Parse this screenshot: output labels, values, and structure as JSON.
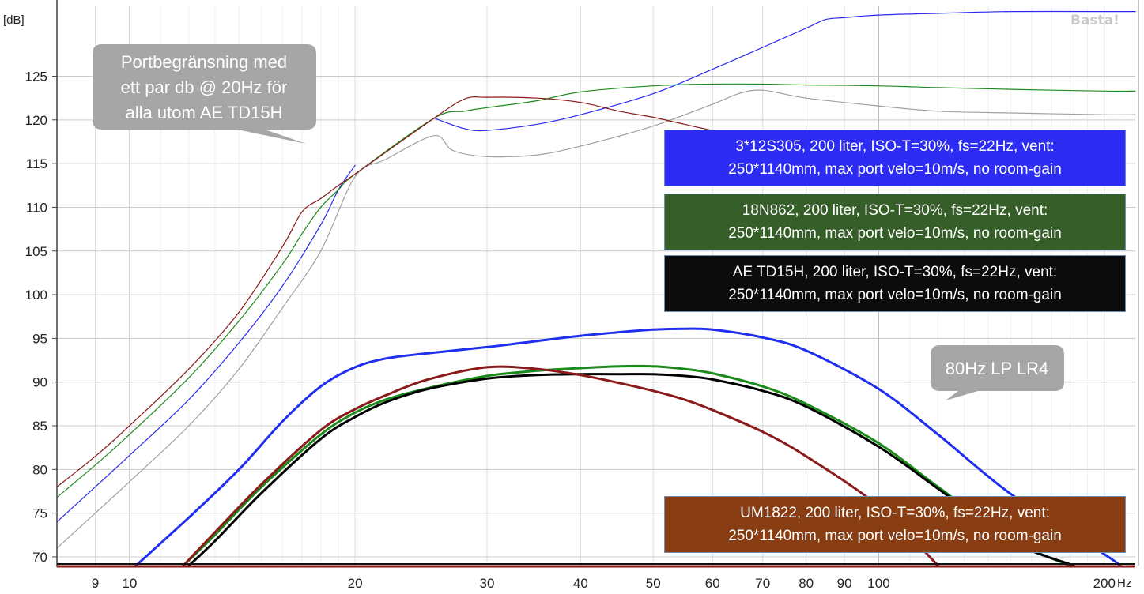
{
  "chart_data": {
    "type": "line",
    "x_scale": "log",
    "xlim": [
      8,
      220
    ],
    "ylim": [
      69,
      133
    ],
    "grid": true,
    "y_unit": "[dB]",
    "x_unit": "Hz",
    "watermark": "Basta!",
    "x_ticks": [
      9,
      10,
      20,
      30,
      40,
      50,
      60,
      70,
      80,
      90,
      100,
      200
    ],
    "y_ticks": [
      70,
      75,
      80,
      85,
      90,
      95,
      100,
      105,
      110,
      115,
      120,
      125
    ],
    "series": [
      {
        "name": "3*12S305",
        "color": "#2a2af0",
        "width": 1.2,
        "x": [
          8,
          9,
          10,
          12,
          14,
          16,
          18,
          19,
          20
        ],
        "y": [
          74,
          78,
          81.6,
          88,
          94.5,
          101,
          108,
          112,
          114.8
        ]
      },
      {
        "name": "3*12S305",
        "color": "#2a2af0",
        "width": 1.2,
        "x": [
          25.5,
          28,
          30,
          35,
          40,
          50,
          60,
          70,
          80,
          85,
          90,
          100,
          120,
          150,
          200,
          220
        ],
        "y": [
          120.2,
          119,
          118.8,
          119.5,
          120.6,
          123,
          125.8,
          128.3,
          130.5,
          131.5,
          131.7,
          132,
          132.2,
          132.4,
          132.4,
          132.4
        ]
      },
      {
        "name": "18N862",
        "color": "#1e8a1e",
        "width": 1.2,
        "x": [
          8,
          9,
          10,
          12,
          14,
          16,
          17,
          18,
          19,
          20,
          25.5,
          28,
          30,
          35,
          40,
          50,
          60,
          70,
          80,
          100,
          120,
          150,
          200,
          220
        ],
        "y": [
          76.8,
          80.5,
          84,
          90.5,
          97,
          103.5,
          107,
          110,
          112,
          113.8,
          120.2,
          121,
          121.4,
          122.2,
          123.2,
          123.9,
          124.1,
          124.1,
          124,
          123.9,
          123.7,
          123.5,
          123.3,
          123.3
        ]
      },
      {
        "name": "AE TD15H",
        "color": "#a0a0a0",
        "width": 1.2,
        "x": [
          8,
          9,
          10,
          12,
          14,
          16,
          18,
          20,
          22,
          25.5,
          27,
          30,
          35,
          40,
          50,
          60,
          65,
          70,
          80,
          100,
          120,
          150,
          200,
          220
        ],
        "y": [
          71,
          75,
          78.6,
          85,
          91.5,
          98.5,
          105,
          113.5,
          115.5,
          118.2,
          116.5,
          115.8,
          116,
          117,
          119.3,
          121.8,
          123,
          123.4,
          122.5,
          121.6,
          121,
          120.8,
          120.6,
          120.6
        ]
      },
      {
        "name": "UM1822",
        "color": "#8b1a1a",
        "width": 1.2,
        "x": [
          8,
          9,
          10,
          12,
          14,
          16,
          17,
          18,
          19,
          20,
          25.5,
          28,
          30,
          35,
          40,
          45,
          50,
          55,
          60,
          65
        ],
        "y": [
          78,
          81.5,
          85,
          91.5,
          98,
          105.5,
          109.5,
          111,
          112.5,
          113.8,
          120.2,
          122.4,
          122.6,
          122.5,
          122,
          121,
          120.3,
          119.5,
          118.8,
          118.3
        ]
      },
      {
        "name": "3*12S305 80Hz LP LR4",
        "color": "#1f2ff0",
        "width": 3,
        "x": [
          10.2,
          12,
          14,
          16,
          18,
          20,
          22,
          25,
          30,
          35,
          40,
          45,
          50,
          55,
          60,
          70,
          80,
          100,
          120,
          150,
          200,
          210
        ],
        "y": [
          69,
          74.5,
          80,
          85.5,
          89.5,
          91.7,
          92.7,
          93.3,
          94,
          94.7,
          95.3,
          95.7,
          96,
          96.1,
          96,
          95.1,
          93.6,
          89.2,
          84,
          77.2,
          70.3,
          69
        ]
      },
      {
        "name": "18N862 80Hz LP LR4",
        "color": "#1a8a1a",
        "width": 3,
        "x": [
          11.8,
          13,
          15,
          18,
          20,
          22,
          25,
          30,
          35,
          40,
          45,
          50,
          55,
          60,
          70,
          80,
          100,
          120,
          150,
          180
        ],
        "y": [
          69,
          72.5,
          78,
          84,
          86.5,
          88,
          89.3,
          90.7,
          91.3,
          91.6,
          91.8,
          91.8,
          91.5,
          91,
          89.5,
          87.5,
          83,
          78,
          72,
          69
        ]
      },
      {
        "name": "AE TD15H 80Hz LP LR4",
        "color": "#000000",
        "width": 3,
        "x": [
          12,
          13,
          15,
          18,
          20,
          22,
          25,
          30,
          35,
          40,
          45,
          50,
          55,
          60,
          70,
          80,
          100,
          120,
          150,
          182
        ],
        "y": [
          69,
          71.8,
          77.3,
          83.5,
          86,
          87.7,
          89.2,
          90.4,
          90.8,
          90.9,
          90.9,
          90.9,
          90.7,
          90.3,
          89,
          87.2,
          82.6,
          77.8,
          71.8,
          69
        ]
      },
      {
        "name": "UM1822 80Hz LP LR4",
        "color": "#8b1a1a",
        "width": 3,
        "x": [
          11.8,
          13,
          15,
          18,
          20,
          22,
          25,
          30,
          35,
          40,
          45,
          50,
          55,
          60,
          70,
          80,
          100,
          120
        ],
        "y": [
          69,
          72.8,
          78.3,
          84.5,
          86.9,
          88.5,
          90.3,
          91.7,
          91.5,
          90.8,
          89.9,
          89,
          88,
          86.8,
          84.3,
          81.5,
          75.8,
          69
        ]
      }
    ]
  },
  "legend": [
    {
      "line1": "3*12S305, 200 liter, ISO-T=30%, fs=22Hz, vent:",
      "line2": "250*1140mm, max port velo=10m/s, no room-gain",
      "bg": "#2c2cf4"
    },
    {
      "line1": "18N862, 200 liter, ISO-T=30%, fs=22Hz, vent:",
      "line2": "250*1140mm, max port velo=10m/s, no room-gain",
      "bg": "#355e28"
    },
    {
      "line1": "AE TD15H, 200 liter, ISO-T=30%, fs=22Hz, vent:",
      "line2": "250*1140mm, max port velo=10m/s, no room-gain",
      "bg": "#0c0c0c"
    },
    {
      "line1": "UM1822, 200 liter, ISO-T=30%, fs=22Hz, vent:",
      "line2": "250*1140mm, max port velo=10m/s, no room-gain",
      "bg": "#883e12"
    }
  ],
  "callouts": {
    "port": {
      "lines": [
        "Portbegränsning med",
        "ett par db @ 20Hz för",
        "alla utom AE TD15H"
      ],
      "bg": "#a6a6a6"
    },
    "lp": {
      "lines": [
        "80Hz LP LR4"
      ],
      "bg": "#a6a6a6"
    }
  }
}
